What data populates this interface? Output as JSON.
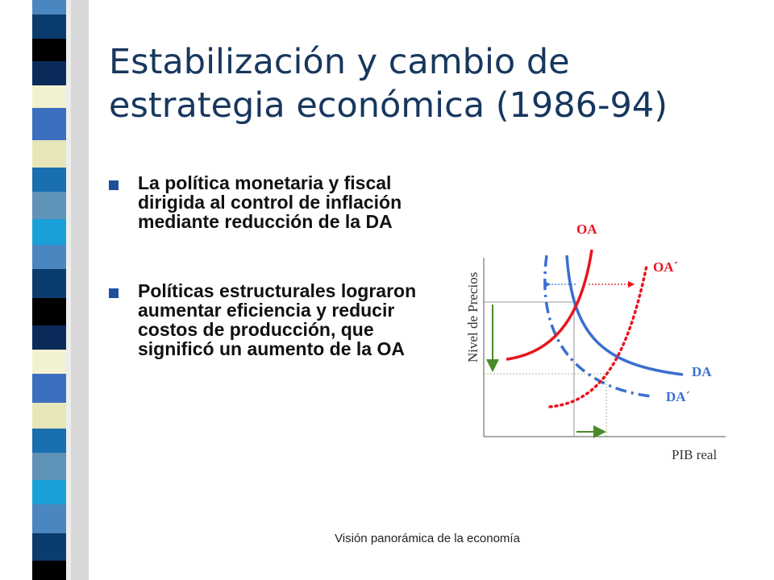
{
  "slide": {
    "title_line1": "Estabilización y cambio de",
    "title_line2": "estrategia económica (1986-94)",
    "bullets": [
      "La política monetaria y fiscal dirigida al control de inflación mediante reducción de la DA",
      "Políticas estructurales lograron aumentar eficiencia y reducir costos de producción, que significó un aumento de la OA"
    ],
    "footer": "Visión panorámica de la economía"
  },
  "diagram": {
    "y_axis_label": "Nivel de Precios",
    "x_axis_label": "PIB real",
    "curves": {
      "oa": "OA",
      "oa_prime": "OA´",
      "da": "DA",
      "da_prime": "DA´"
    }
  },
  "colors": {
    "title": "#17375e",
    "bullet_marker": "#1f4e9b",
    "oa_curve": "#e8141e",
    "da_curve": "#3a6fd0",
    "guide_lines": "#4a8a2a"
  }
}
